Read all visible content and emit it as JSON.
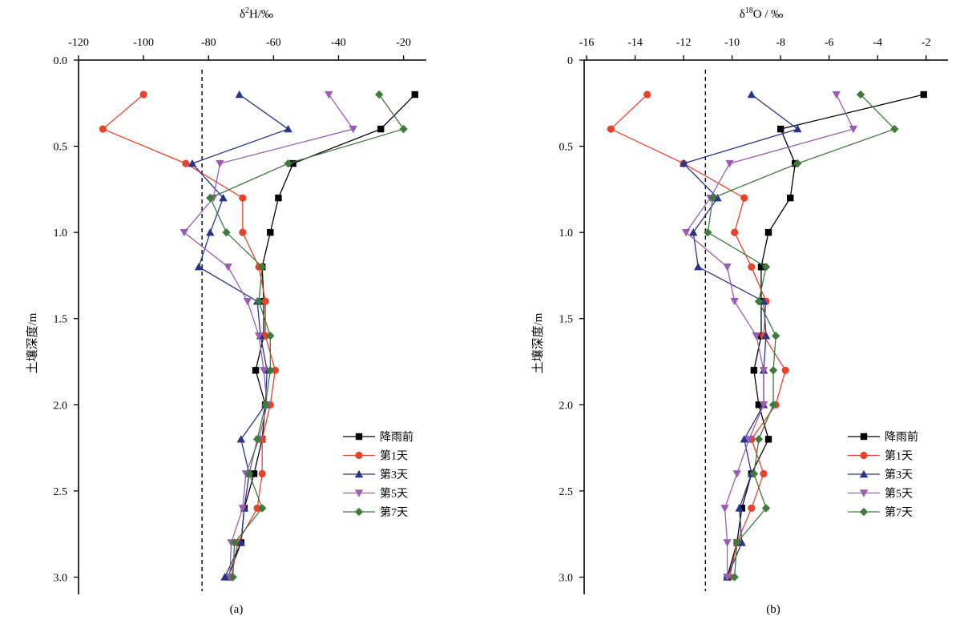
{
  "chart_data": [
    {
      "type": "line",
      "panel_label": "(a)",
      "xlabel_base": "δ",
      "xlabel_sup": "2",
      "xlabel_rest": "H/‰",
      "ylabel": "土壤深度/m",
      "xlim": [
        -120,
        -13
      ],
      "ylim": [
        0,
        3.1
      ],
      "xticks": [
        -120,
        -100,
        -80,
        -60,
        -40,
        -20
      ],
      "yticks": [
        0.0,
        0.5,
        1.0,
        1.5,
        2.0,
        2.5,
        3.0
      ],
      "ytick_labels": [
        "0.0",
        "0.5",
        "1.0",
        "1.5",
        "2.0",
        "2.5",
        "3.0"
      ],
      "reference_line_x": -82,
      "legend_position": "bottom-right",
      "series": [
        {
          "name": "降雨前",
          "color": "#000000",
          "marker": "square",
          "x": [
            -16.5,
            -27,
            -54,
            -58.5,
            -61,
            -63.5,
            -63,
            -63,
            -65.5,
            -62.5,
            -63.5,
            -66,
            -69,
            -70,
            -74
          ],
          "y": [
            0.2,
            0.4,
            0.6,
            0.8,
            1.0,
            1.2,
            1.4,
            1.6,
            1.8,
            2.0,
            2.2,
            2.4,
            2.6,
            2.8,
            3.0
          ]
        },
        {
          "name": "第1天",
          "color": "#e8432a",
          "marker": "circle",
          "x": [
            -100,
            -112.5,
            -87,
            -69.5,
            -69.5,
            -64.5,
            -62.5,
            -62.5,
            -59.5,
            -61,
            -63.5,
            -63.5,
            -65,
            -71,
            -73
          ],
          "y": [
            0.2,
            0.4,
            0.6,
            0.8,
            1.0,
            1.2,
            1.4,
            1.6,
            1.8,
            2.0,
            2.2,
            2.4,
            2.6,
            2.8,
            3.0
          ]
        },
        {
          "name": "第3天",
          "color": "#26348a",
          "marker": "triangle-up",
          "x": [
            -70.5,
            -55.5,
            -85,
            -75.5,
            -79.5,
            -83,
            -65,
            -64,
            -62,
            -62.5,
            -70,
            -67.5,
            -69,
            -70,
            -75
          ],
          "y": [
            0.2,
            0.4,
            0.6,
            0.8,
            1.0,
            1.2,
            1.4,
            1.6,
            1.8,
            2.0,
            2.2,
            2.4,
            2.6,
            2.8,
            3.0
          ]
        },
        {
          "name": "第5天",
          "color": "#9b5cb4",
          "marker": "triangle-down",
          "x": [
            -43,
            -35.5,
            -76.5,
            -78.5,
            -87.5,
            -74,
            -68,
            -64.5,
            -63,
            -62,
            -64.5,
            -68.5,
            -69.5,
            -73,
            -73.5
          ],
          "y": [
            0.2,
            0.4,
            0.6,
            0.8,
            1.0,
            1.2,
            1.4,
            1.6,
            1.8,
            2.0,
            2.2,
            2.4,
            2.6,
            2.8,
            3.0
          ]
        },
        {
          "name": "第7天",
          "color": "#3e7a3a",
          "marker": "diamond",
          "x": [
            -27.5,
            -20,
            -55.5,
            -79.5,
            -74.5,
            -63.5,
            -64.5,
            -61,
            -61,
            -62.5,
            -65,
            -67.5,
            -63.5,
            -72,
            -72.5
          ],
          "y": [
            0.2,
            0.4,
            0.6,
            0.8,
            1.0,
            1.2,
            1.4,
            1.6,
            1.8,
            2.0,
            2.2,
            2.4,
            2.6,
            2.8,
            3.0
          ]
        }
      ]
    },
    {
      "type": "line",
      "panel_label": "(b)",
      "xlabel_base": "δ",
      "xlabel_sup": "18",
      "xlabel_rest": "O / ‰",
      "ylabel": "土壤深度/m",
      "xlim": [
        -16.1,
        -1.1
      ],
      "ylim": [
        0,
        3.1
      ],
      "xticks": [
        -16,
        -14,
        -12,
        -10,
        -8,
        -6,
        -4,
        -2
      ],
      "yticks": [
        0.0,
        0.5,
        1.0,
        1.5,
        2.0,
        2.5,
        3.0
      ],
      "ytick_labels": [
        "0",
        "0.5",
        "1.0",
        "1.5",
        "2.0",
        "2.5",
        "3.0"
      ],
      "reference_line_x": -11.1,
      "legend_position": "bottom-right",
      "series": [
        {
          "name": "降雨前",
          "color": "#000000",
          "marker": "square",
          "x": [
            -2.1,
            -8,
            -7.4,
            -7.6,
            -8.5,
            -8.8,
            -8.8,
            -8.8,
            -9.1,
            -8.9,
            -8.5,
            -9.2,
            -9.6,
            -9.8,
            -10.2
          ],
          "y": [
            0.2,
            0.4,
            0.6,
            0.8,
            1.0,
            1.2,
            1.4,
            1.6,
            1.8,
            2.0,
            2.2,
            2.4,
            2.6,
            2.8,
            3.0
          ]
        },
        {
          "name": "第1天",
          "color": "#e8432a",
          "marker": "circle",
          "x": [
            -13.5,
            -15,
            -12,
            -9.5,
            -9.9,
            -9.2,
            -8.6,
            -8.7,
            -7.8,
            -8.2,
            -9.2,
            -8.7,
            -9.2,
            -9.8,
            -10.1
          ],
          "y": [
            0.2,
            0.4,
            0.6,
            0.8,
            1.0,
            1.2,
            1.4,
            1.6,
            1.8,
            2.0,
            2.2,
            2.4,
            2.6,
            2.8,
            3.0
          ]
        },
        {
          "name": "第3天",
          "color": "#26348a",
          "marker": "triangle-up",
          "x": [
            -9.2,
            -7.3,
            -12,
            -10.6,
            -11.6,
            -11.4,
            -8.7,
            -8.6,
            -8.7,
            -8.7,
            -9.5,
            -9.2,
            -9.7,
            -9.6,
            -10.2
          ],
          "y": [
            0.2,
            0.4,
            0.6,
            0.8,
            1.0,
            1.2,
            1.4,
            1.6,
            1.8,
            2.0,
            2.2,
            2.4,
            2.6,
            2.8,
            3.0
          ]
        },
        {
          "name": "第5天",
          "color": "#9b5cb4",
          "marker": "triangle-down",
          "x": [
            -5.7,
            -5,
            -10.1,
            -10.9,
            -11.9,
            -10.2,
            -9.9,
            -9,
            -8.7,
            -8.7,
            -9.3,
            -9.8,
            -10.3,
            -10.2,
            -10.2
          ],
          "y": [
            0.2,
            0.4,
            0.6,
            0.8,
            1.0,
            1.2,
            1.4,
            1.6,
            1.8,
            2.0,
            2.2,
            2.4,
            2.6,
            2.8,
            3.0
          ]
        },
        {
          "name": "第7天",
          "color": "#3e7a3a",
          "marker": "diamond",
          "x": [
            -4.7,
            -3.3,
            -7.3,
            -10.8,
            -11,
            -8.6,
            -8.9,
            -8.2,
            -8.3,
            -8.3,
            -8.9,
            -9.1,
            -8.6,
            -9.8,
            -9.9
          ],
          "y": [
            0.2,
            0.4,
            0.6,
            0.8,
            1.0,
            1.2,
            1.4,
            1.6,
            1.8,
            2.0,
            2.2,
            2.4,
            2.6,
            2.8,
            3.0
          ]
        }
      ]
    }
  ]
}
